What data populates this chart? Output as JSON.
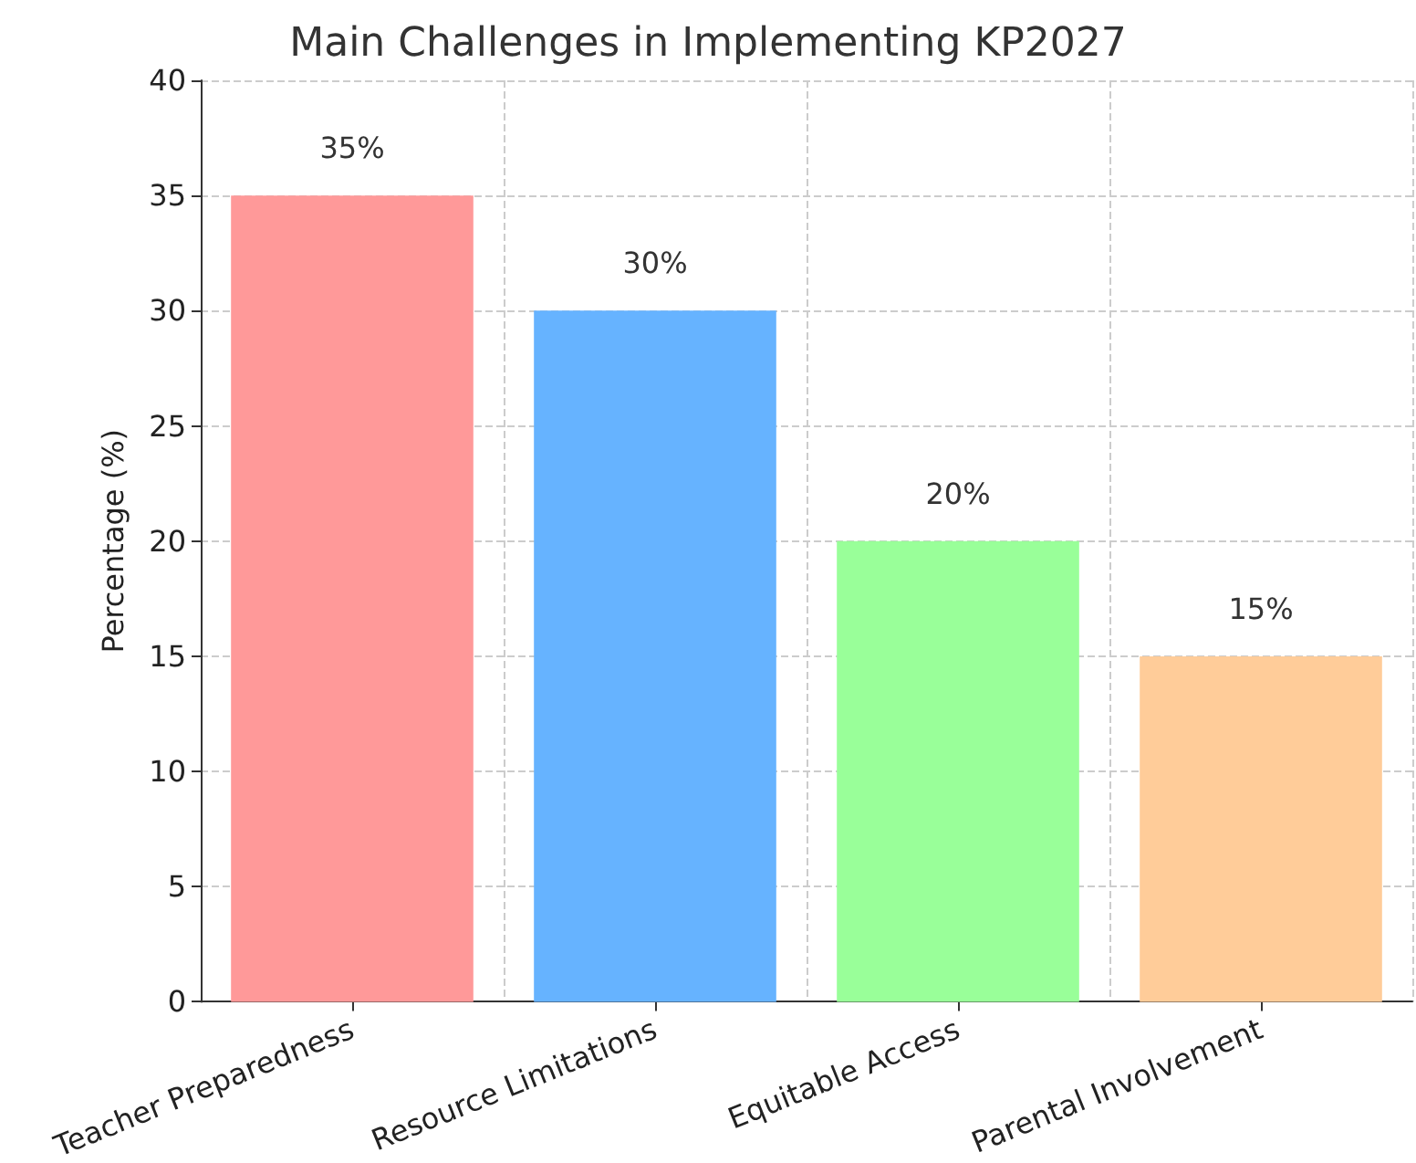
{
  "chart_data": {
    "type": "bar",
    "title": "Main Challenges in Implementing KP2027",
    "ylabel": "Percentage (%)",
    "categories": [
      "Teacher Preparedness",
      "Resource Limitations",
      "Equitable Access",
      "Parental Involvement"
    ],
    "values": [
      35,
      30,
      20,
      15
    ],
    "colors": [
      "#ff9999",
      "#66b3ff",
      "#99ff99",
      "#ffcc99"
    ],
    "value_labels": [
      "35%",
      "30%",
      "20%",
      "15%"
    ],
    "ylim": [
      0,
      40
    ],
    "yticks": [
      0,
      5,
      10,
      15,
      20,
      25,
      30,
      35,
      40
    ],
    "grid": true
  }
}
